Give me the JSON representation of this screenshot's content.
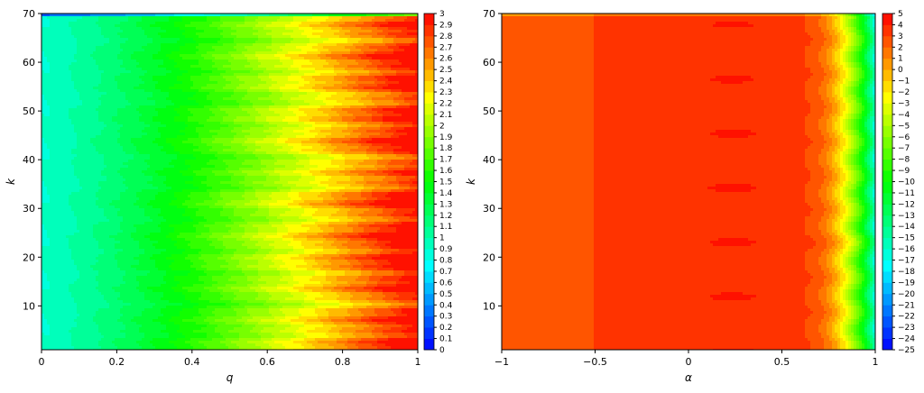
{
  "chart_data": [
    {
      "type": "heatmap",
      "subtype": "filled-contour",
      "title": "",
      "xlabel": "q",
      "ylabel": "k",
      "xlim": [
        0,
        1
      ],
      "ylim": [
        1,
        70
      ],
      "xticks": [
        "0",
        "0.2",
        "0.4",
        "0.6",
        "0.8",
        "1"
      ],
      "yticks": [
        "10",
        "20",
        "30",
        "40",
        "50",
        "60",
        "70"
      ],
      "colorbar": {
        "min": 0,
        "max": 3,
        "step": 0.1,
        "ticks": [
          "0",
          "0.1",
          "0.2",
          "0.3",
          "0.4",
          "0.5",
          "0.6",
          "0.7",
          "0.8",
          "0.9",
          "1",
          "1.1",
          "1.2",
          "1.3",
          "1.4",
          "1.5",
          "1.6",
          "1.7",
          "1.8",
          "1.9",
          "2",
          "2.1",
          "2.2",
          "2.3",
          "2.4",
          "2.5",
          "2.6",
          "2.7",
          "2.8",
          "2.9",
          "3"
        ],
        "colormap": [
          "#0000ff",
          "#00ffff",
          "#00ff00",
          "#ffff00",
          "#ff0000"
        ]
      },
      "grid": false,
      "z_trend": "z increases with q from about 0.9 at q=0 to about 3 at q=1; nearly independent of k with ripples"
    },
    {
      "type": "heatmap",
      "subtype": "filled-contour",
      "title": "",
      "xlabel": "α",
      "ylabel": "k",
      "xlim": [
        -1,
        1
      ],
      "ylim": [
        1,
        70
      ],
      "xticks": [
        "−1",
        "−0.5",
        "0",
        "0.5",
        "1"
      ],
      "yticks": [
        "10",
        "20",
        "30",
        "40",
        "50",
        "60",
        "70"
      ],
      "colorbar": {
        "min": -25,
        "max": 5,
        "step": 1,
        "ticks": [
          "5",
          "4",
          "3",
          "2",
          "1",
          "0",
          "−1",
          "−2",
          "−3",
          "−4",
          "−5",
          "−6",
          "−7",
          "−8",
          "−9",
          "−10",
          "−11",
          "−12",
          "−13",
          "−14",
          "−15",
          "−16",
          "−17",
          "−18",
          "−19",
          "−20",
          "−21",
          "−22",
          "−23",
          "−24",
          "−25"
        ],
        "colormap": [
          "#0000ff",
          "#00ffff",
          "#00ff00",
          "#ffff00",
          "#ff0000"
        ]
      },
      "grid": false,
      "z_trend": "z about 2 for α<−0.5, about 3 for −0.5<α<−0.15, peaks about 4 near α=0.2–0.5, then falls steeply to about −16 at α=1"
    }
  ]
}
